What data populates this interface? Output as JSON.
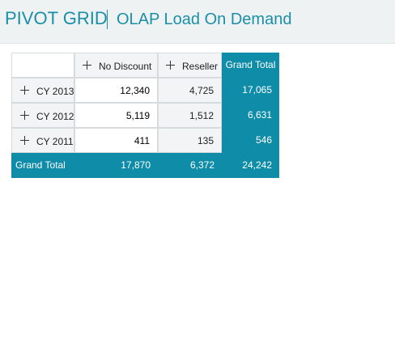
{
  "header": {
    "title": "PIVOT GRID",
    "subtitle": "OLAP Load On Demand"
  },
  "colors": {
    "accent": "#0f8ca7",
    "header_text": "#1b8fa7",
    "light_cell": "#f2f4f5"
  },
  "pivot": {
    "column_headers": [
      "No Discount",
      "Reseller",
      "Grand Total"
    ],
    "rows": [
      {
        "label": "CY 2013",
        "values": [
          "12,340",
          "4,725",
          "17,065"
        ]
      },
      {
        "label": "CY 2012",
        "values": [
          "5,119",
          "1,512",
          "6,631"
        ]
      },
      {
        "label": "CY 2011",
        "values": [
          "411",
          "135",
          "546"
        ]
      }
    ],
    "grand_total": {
      "label": "Grand Total",
      "values": [
        "17,870",
        "6,372",
        "24,242"
      ]
    },
    "expand_icon": "plus-icon"
  }
}
